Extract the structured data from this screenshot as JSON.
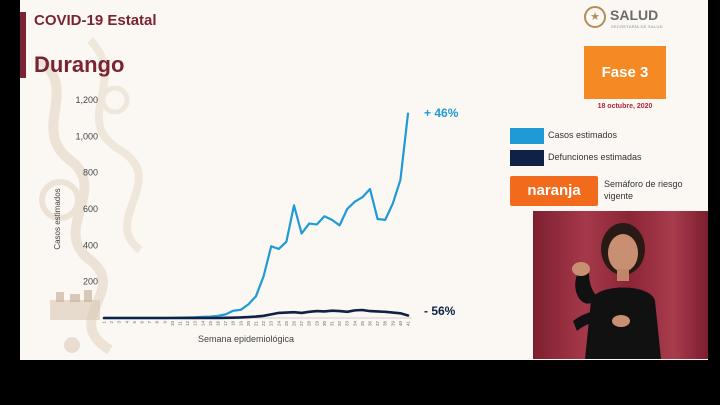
{
  "header": {
    "title": "COVID-19 Estatal",
    "region": "Durango"
  },
  "logo": {
    "seal_glyph": "★",
    "text": "SALUD",
    "subtitle": "SECRETARÍA DE SALUD"
  },
  "phase": {
    "label": "Fase 3",
    "date": "18 octubre, 2020",
    "color": "#f58a25"
  },
  "legend": {
    "items": [
      {
        "label": "Casos estimados",
        "color": "#1f9ad6"
      },
      {
        "label": "Defunciones estimadas",
        "color": "#0f2145"
      }
    ]
  },
  "semaforo": {
    "value": "naranja",
    "label": "Semáforo de riesgo vigente",
    "color": "#f26b1d"
  },
  "annotations": {
    "up": "+ 46%",
    "down": "- 56%"
  },
  "chart_data": {
    "type": "line",
    "xlabel": "Semana epidemiológica",
    "ylabel": "Casos estimados",
    "ylim": [
      0,
      1200
    ],
    "yticks": [
      200,
      400,
      600,
      800,
      1000,
      1200
    ],
    "ytick_labels": [
      "200",
      "400",
      "600",
      "800",
      "1,000",
      "1,200"
    ],
    "x": [
      1,
      2,
      3,
      4,
      5,
      6,
      7,
      8,
      9,
      10,
      11,
      12,
      13,
      14,
      15,
      16,
      17,
      18,
      19,
      20,
      21,
      22,
      23,
      24,
      25,
      26,
      27,
      28,
      29,
      30,
      31,
      32,
      33,
      34,
      35,
      36,
      37,
      38,
      39,
      40,
      41
    ],
    "series": [
      {
        "name": "Casos estimados",
        "color": "#1f9ad6",
        "values": [
          0,
          0,
          0,
          0,
          0,
          0,
          0,
          0,
          0,
          1,
          2,
          3,
          4,
          6,
          8,
          12,
          20,
          40,
          45,
          75,
          120,
          230,
          395,
          380,
          420,
          620,
          465,
          520,
          515,
          560,
          540,
          510,
          600,
          640,
          665,
          710,
          545,
          540,
          630,
          760,
          1125
        ]
      },
      {
        "name": "Defunciones estimadas",
        "color": "#0f2145",
        "values": [
          0,
          0,
          0,
          0,
          0,
          0,
          0,
          0,
          0,
          0,
          0,
          0,
          0,
          0,
          0,
          0,
          1,
          2,
          3,
          5,
          8,
          12,
          20,
          28,
          30,
          32,
          28,
          34,
          38,
          36,
          40,
          38,
          34,
          42,
          44,
          38,
          36,
          34,
          30,
          26,
          14
        ]
      }
    ],
    "grid": false,
    "legend_position": "right"
  }
}
